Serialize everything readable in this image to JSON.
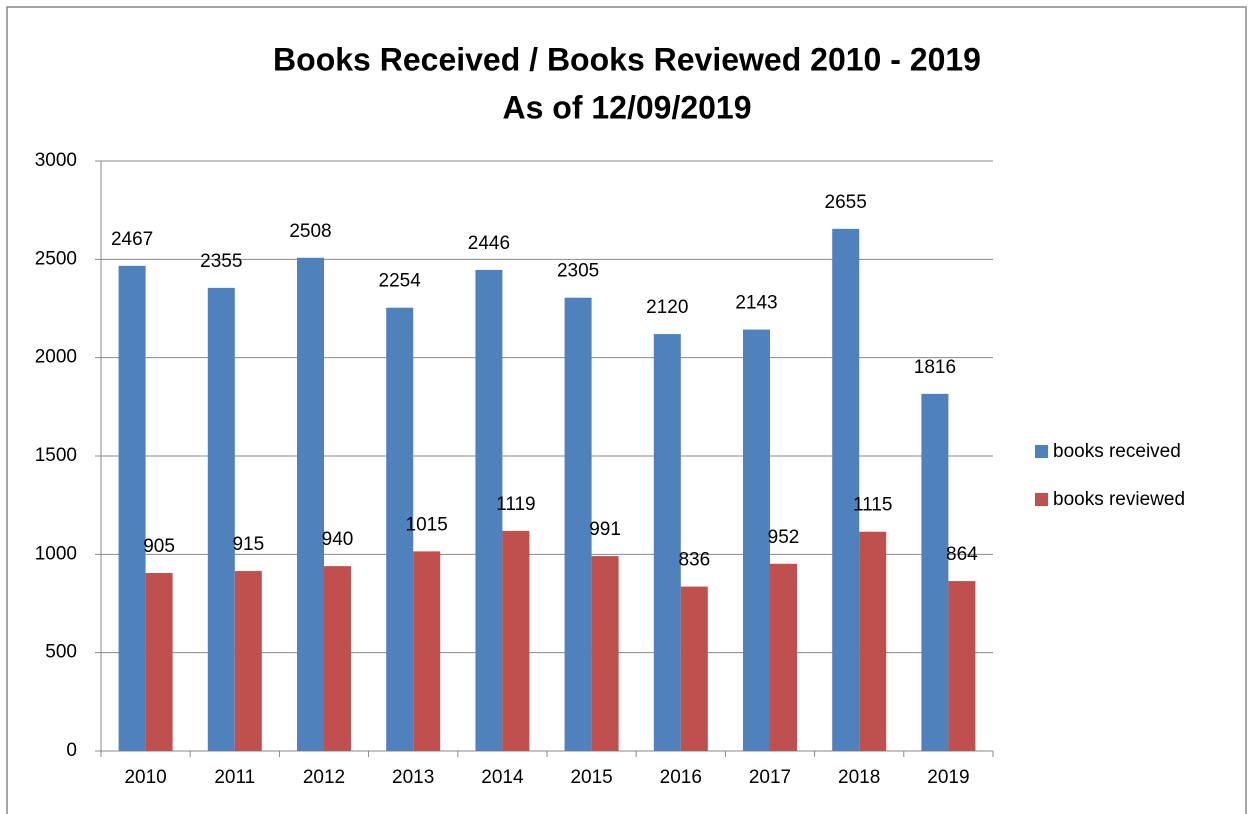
{
  "chart_data": {
    "type": "bar",
    "title": "Books Received / Books Reviewed 2010 - 2019",
    "subtitle": "As of 12/09/2019",
    "categories": [
      "2010",
      "2011",
      "2012",
      "2013",
      "2014",
      "2015",
      "2016",
      "2017",
      "2018",
      "2019"
    ],
    "series": [
      {
        "name": "books received",
        "color": "#4f81bd",
        "values": [
          2467,
          2355,
          2508,
          2254,
          2446,
          2305,
          2120,
          2143,
          2655,
          1816
        ]
      },
      {
        "name": "books reviewed",
        "color": "#c0504d",
        "values": [
          905,
          915,
          940,
          1015,
          1119,
          991,
          836,
          952,
          1115,
          864
        ]
      }
    ],
    "ylim": [
      0,
      3000
    ],
    "yticks": [
      0,
      500,
      1000,
      1500,
      2000,
      2500,
      3000
    ],
    "grid": true,
    "legend": "right"
  }
}
